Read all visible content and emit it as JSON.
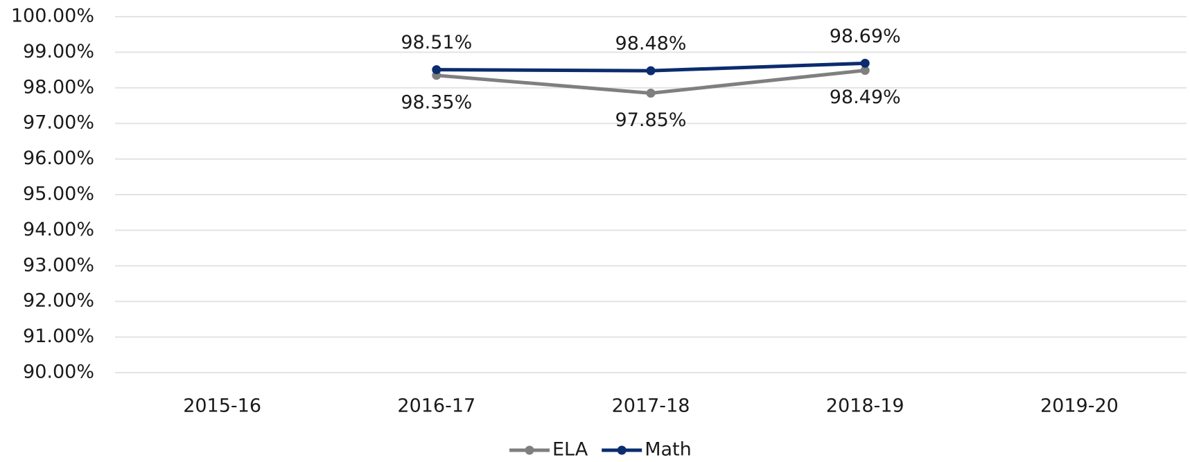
{
  "chart_data": {
    "type": "line",
    "categories": [
      "2015-16",
      "2016-17",
      "2017-18",
      "2018-19",
      "2019-20"
    ],
    "series": [
      {
        "name": "ELA",
        "color": "#7f7f7f",
        "values": [
          null,
          98.35,
          97.85,
          98.49,
          null
        ],
        "value_labels": [
          null,
          "98.35%",
          "97.85%",
          "98.49%",
          null
        ],
        "label_position": "below"
      },
      {
        "name": "Math",
        "color": "#0b2c6e",
        "values": [
          null,
          98.51,
          98.48,
          98.69,
          null
        ],
        "value_labels": [
          null,
          "98.51%",
          "98.48%",
          "98.69%",
          null
        ],
        "label_position": "above"
      }
    ],
    "ylim": [
      90,
      100
    ],
    "yticks": [
      {
        "value": 90,
        "label": "90.00%"
      },
      {
        "value": 91,
        "label": "91.00%"
      },
      {
        "value": 92,
        "label": "92.00%"
      },
      {
        "value": 93,
        "label": "93.00%"
      },
      {
        "value": 94,
        "label": "94.00%"
      },
      {
        "value": 95,
        "label": "95.00%"
      },
      {
        "value": 96,
        "label": "96.00%"
      },
      {
        "value": 97,
        "label": "97.00%"
      },
      {
        "value": 98,
        "label": "98.00%"
      },
      {
        "value": 99,
        "label": "99.00%"
      },
      {
        "value": 100,
        "label": "100.00%"
      }
    ],
    "grid": true,
    "legend": "bottom"
  }
}
